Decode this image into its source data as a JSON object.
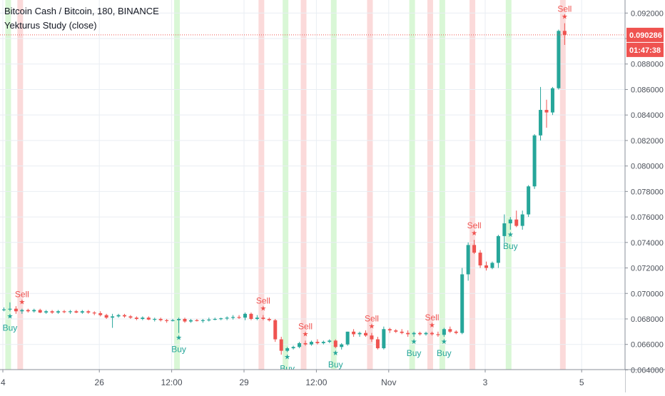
{
  "header": {
    "symbol_line": "Bitcoin Cash / Bitcoin, 180, BINANCE",
    "study_line": "Yekturus Study (close)"
  },
  "price_axis": {
    "last_price_label": "0.090286",
    "countdown_label": "01:47:38"
  },
  "colors": {
    "up": "#26a69a",
    "down": "#ef5350",
    "buy_band": "#d9f7d6",
    "sell_band": "#fbdada",
    "grid": "#e9eef3",
    "last_price": "#ef5350",
    "buy_text": "#26a69a",
    "sell_text": "#ef5350"
  },
  "chart_data": {
    "type": "candlestick",
    "title": "Bitcoin Cash / Bitcoin, 180, BINANCE",
    "indicator": "Yekturus Study (close)",
    "ylim": [
      0.0638,
      0.0928
    ],
    "y_ticks": [
      "0.092000",
      "0.090000",
      "0.088000",
      "0.086000",
      "0.084000",
      "0.082000",
      "0.080000",
      "0.078000",
      "0.076000",
      "0.074000",
      "0.072000",
      "0.070000",
      "0.068000",
      "0.066000",
      "0.064000"
    ],
    "x_ticks": [
      {
        "bar": 0,
        "label": "4"
      },
      {
        "bar": 16,
        "label": "26"
      },
      {
        "bar": 28,
        "label": "12:00"
      },
      {
        "bar": 40,
        "label": "29"
      },
      {
        "bar": 52,
        "label": "12:00"
      },
      {
        "bar": 64,
        "label": "Nov"
      },
      {
        "bar": 80,
        "label": "3"
      },
      {
        "bar": 96,
        "label": "5"
      }
    ],
    "last_price": 0.090286,
    "candles": [
      [
        0.0687,
        0.0689,
        0.0686,
        0.06875
      ],
      [
        0.06875,
        0.0693,
        0.0686,
        0.0688
      ],
      [
        0.0688,
        0.069,
        0.0684,
        0.0686
      ],
      [
        0.0686,
        0.0688,
        0.0684,
        0.0687
      ],
      [
        0.0687,
        0.0688,
        0.0685,
        0.0686
      ],
      [
        0.0686,
        0.0688,
        0.0685,
        0.0687
      ],
      [
        0.0687,
        0.0688,
        0.06845,
        0.0685
      ],
      [
        0.0685,
        0.0687,
        0.0684,
        0.0686
      ],
      [
        0.0686,
        0.0687,
        0.0684,
        0.0685
      ],
      [
        0.0685,
        0.0687,
        0.0684,
        0.0686
      ],
      [
        0.0686,
        0.0687,
        0.06845,
        0.06855
      ],
      [
        0.06855,
        0.0687,
        0.0684,
        0.0686
      ],
      [
        0.0686,
        0.0687,
        0.06845,
        0.0685
      ],
      [
        0.0685,
        0.0687,
        0.0684,
        0.0686
      ],
      [
        0.0686,
        0.0687,
        0.0684,
        0.0685
      ],
      [
        0.0685,
        0.0686,
        0.0683,
        0.06845
      ],
      [
        0.06845,
        0.0686,
        0.0682,
        0.0683
      ],
      [
        0.0683,
        0.0684,
        0.068,
        0.0681
      ],
      [
        0.0681,
        0.0684,
        0.0673,
        0.0682
      ],
      [
        0.0682,
        0.0684,
        0.0681,
        0.0683
      ],
      [
        0.0683,
        0.0684,
        0.0681,
        0.0682
      ],
      [
        0.0682,
        0.0683,
        0.068,
        0.0681
      ],
      [
        0.0681,
        0.0682,
        0.0679,
        0.068
      ],
      [
        0.068,
        0.0682,
        0.0679,
        0.0681
      ],
      [
        0.0681,
        0.0682,
        0.0679,
        0.06795
      ],
      [
        0.06795,
        0.0681,
        0.0678,
        0.068
      ],
      [
        0.068,
        0.0681,
        0.0678,
        0.0679
      ],
      [
        0.0679,
        0.068,
        0.0677,
        0.06785
      ],
      [
        0.06785,
        0.068,
        0.0678,
        0.0679
      ],
      [
        0.0679,
        0.0681,
        0.0669,
        0.068
      ],
      [
        0.068,
        0.0681,
        0.0677,
        0.0678
      ],
      [
        0.0678,
        0.068,
        0.0677,
        0.0679
      ],
      [
        0.0679,
        0.068,
        0.0678,
        0.06785
      ],
      [
        0.06785,
        0.068,
        0.0677,
        0.0679
      ],
      [
        0.0679,
        0.0681,
        0.0678,
        0.06795
      ],
      [
        0.06795,
        0.0681,
        0.0679,
        0.068
      ],
      [
        0.068,
        0.0681,
        0.0679,
        0.06805
      ],
      [
        0.06805,
        0.0682,
        0.0679,
        0.0681
      ],
      [
        0.0681,
        0.0683,
        0.06795,
        0.06815
      ],
      [
        0.06815,
        0.0683,
        0.068,
        0.0681
      ],
      [
        0.0681,
        0.0685,
        0.0679,
        0.0684
      ],
      [
        0.0684,
        0.0685,
        0.0679,
        0.068
      ],
      [
        0.068,
        0.0683,
        0.0679,
        0.0681
      ],
      [
        0.0681,
        0.0683,
        0.0679,
        0.068
      ],
      [
        0.068,
        0.0681,
        0.0678,
        0.0679
      ],
      [
        0.0679,
        0.068,
        0.0662,
        0.0664
      ],
      [
        0.0664,
        0.0666,
        0.0652,
        0.0655
      ],
      [
        0.0655,
        0.0658,
        0.0654,
        0.0657
      ],
      [
        0.0657,
        0.0659,
        0.0656,
        0.0658
      ],
      [
        0.0658,
        0.0662,
        0.0657,
        0.0661
      ],
      [
        0.0661,
        0.0663,
        0.0659,
        0.066
      ],
      [
        0.066,
        0.0663,
        0.0659,
        0.0662
      ],
      [
        0.0662,
        0.0664,
        0.066,
        0.0661
      ],
      [
        0.0661,
        0.0663,
        0.066,
        0.0662
      ],
      [
        0.0662,
        0.0664,
        0.0661,
        0.0663
      ],
      [
        0.0663,
        0.0664,
        0.0657,
        0.0658
      ],
      [
        0.0658,
        0.0661,
        0.0656,
        0.066
      ],
      [
        0.066,
        0.067,
        0.0659,
        0.067
      ],
      [
        0.067,
        0.0672,
        0.0666,
        0.0668
      ],
      [
        0.0668,
        0.067,
        0.0666,
        0.0669
      ],
      [
        0.0669,
        0.0671,
        0.0666,
        0.0667
      ],
      [
        0.0667,
        0.0669,
        0.0662,
        0.0664
      ],
      [
        0.0664,
        0.0666,
        0.0656,
        0.0657
      ],
      [
        0.0657,
        0.0674,
        0.0656,
        0.0672
      ],
      [
        0.0672,
        0.0673,
        0.0669,
        0.0671
      ],
      [
        0.0671,
        0.0672,
        0.0669,
        0.067
      ],
      [
        0.067,
        0.0672,
        0.0668,
        0.0669
      ],
      [
        0.0669,
        0.0671,
        0.0666,
        0.0668
      ],
      [
        0.0668,
        0.067,
        0.0666,
        0.0669
      ],
      [
        0.0669,
        0.067,
        0.0667,
        0.0668
      ],
      [
        0.0668,
        0.067,
        0.0667,
        0.0669
      ],
      [
        0.0669,
        0.067,
        0.0667,
        0.0668
      ],
      [
        0.0668,
        0.067,
        0.0666,
        0.06675
      ],
      [
        0.06675,
        0.0673,
        0.0666,
        0.0672
      ],
      [
        0.0672,
        0.0674,
        0.0669,
        0.067
      ],
      [
        0.067,
        0.0671,
        0.0668,
        0.0669
      ],
      [
        0.0669,
        0.072,
        0.0668,
        0.0715
      ],
      [
        0.0715,
        0.074,
        0.071,
        0.0738
      ],
      [
        0.0738,
        0.0742,
        0.0731,
        0.0732
      ],
      [
        0.0732,
        0.0734,
        0.072,
        0.0722
      ],
      [
        0.0722,
        0.0725,
        0.0718,
        0.072
      ],
      [
        0.072,
        0.0725,
        0.0719,
        0.0724
      ],
      [
        0.0724,
        0.0746,
        0.072,
        0.0745
      ],
      [
        0.0745,
        0.0762,
        0.074,
        0.0755
      ],
      [
        0.0755,
        0.076,
        0.075,
        0.0758
      ],
      [
        0.0758,
        0.0765,
        0.0752,
        0.0753
      ],
      [
        0.0753,
        0.0765,
        0.075,
        0.0762
      ],
      [
        0.0762,
        0.0785,
        0.076,
        0.0784
      ],
      [
        0.0784,
        0.0825,
        0.0782,
        0.0824
      ],
      [
        0.0824,
        0.0862,
        0.082,
        0.0844
      ],
      [
        0.0844,
        0.0852,
        0.083,
        0.0842
      ],
      [
        0.0842,
        0.0862,
        0.084,
        0.0861
      ],
      [
        0.0861,
        0.0907,
        0.086,
        0.0906
      ],
      [
        0.0906,
        0.0912,
        0.0895,
        0.09029
      ]
    ],
    "buy_bands": [
      1,
      29,
      47,
      55,
      68,
      73,
      84
    ],
    "sell_bands": [
      3,
      43,
      50,
      61,
      71,
      78,
      93
    ],
    "signals": [
      {
        "bar": 1,
        "type": "buy",
        "label": "Buy"
      },
      {
        "bar": 3,
        "type": "sell",
        "label": "Sell"
      },
      {
        "bar": 29,
        "type": "buy",
        "label": "Buy"
      },
      {
        "bar": 43,
        "type": "sell",
        "label": "Sell"
      },
      {
        "bar": 47,
        "type": "buy",
        "label": "Buy"
      },
      {
        "bar": 50,
        "type": "sell",
        "label": "Sell"
      },
      {
        "bar": 55,
        "type": "buy",
        "label": "Buy"
      },
      {
        "bar": 61,
        "type": "sell",
        "label": "Sell"
      },
      {
        "bar": 68,
        "type": "buy",
        "label": "Buy"
      },
      {
        "bar": 71,
        "type": "sell",
        "label": "Sell"
      },
      {
        "bar": 73,
        "type": "buy",
        "label": "Buy"
      },
      {
        "bar": 78,
        "type": "sell",
        "label": "Sell"
      },
      {
        "bar": 84,
        "type": "buy",
        "label": "Buy"
      },
      {
        "bar": 93,
        "type": "sell",
        "label": "Sell"
      }
    ]
  }
}
